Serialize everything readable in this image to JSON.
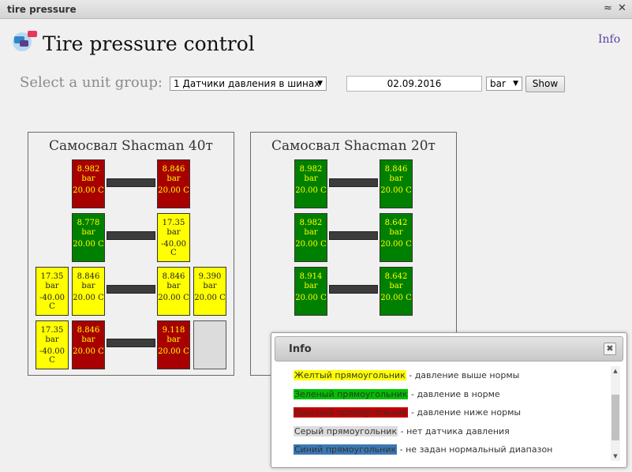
{
  "window": {
    "title": "tire pressure",
    "collapse_glyph": "≈",
    "close_glyph": "✕"
  },
  "header": {
    "title": "Tire pressure control",
    "info_link": "Info"
  },
  "controls": {
    "group_label": "Select a unit group:",
    "group_value": "1 Датчики давления в шинах",
    "date_value": "02.09.2016",
    "unit_value": "bar",
    "show_label": "Show"
  },
  "units": [
    {
      "title": "Самосвал Shacman 40т",
      "tires": [
        {
          "status": "red",
          "pressure": "8.982",
          "unit": "bar",
          "temp": "20.00 C"
        },
        {
          "status": "red",
          "pressure": "8.846",
          "unit": "bar",
          "temp": "20.00 C"
        },
        {
          "status": "green",
          "pressure": "8.778",
          "unit": "bar",
          "temp": "20.00 C"
        },
        {
          "status": "yellow",
          "pressure": "17.35",
          "unit": "bar",
          "temp": "-40.00 C"
        },
        {
          "status": "yellow",
          "pressure": "17.35",
          "unit": "bar",
          "temp": "-40.00 C"
        },
        {
          "status": "yellow",
          "pressure": "8.846",
          "unit": "bar",
          "temp": "20.00 C"
        },
        {
          "status": "yellow",
          "pressure": "8.846",
          "unit": "bar",
          "temp": "20.00 C"
        },
        {
          "status": "yellow",
          "pressure": "9.390",
          "unit": "bar",
          "temp": "20.00 C"
        },
        {
          "status": "yellow",
          "pressure": "17.35",
          "unit": "bar",
          "temp": "-40.00 C"
        },
        {
          "status": "red",
          "pressure": "8.846",
          "unit": "bar",
          "temp": "20.00 C"
        },
        {
          "status": "red",
          "pressure": "9.118",
          "unit": "bar",
          "temp": "20.00 C"
        },
        {
          "status": "gray",
          "pressure": "",
          "unit": "",
          "temp": ""
        }
      ]
    },
    {
      "title": "Самосвал Shacman 20т",
      "tires": [
        {
          "status": "green",
          "pressure": "8.982",
          "unit": "bar",
          "temp": "20.00 C"
        },
        {
          "status": "green",
          "pressure": "8.846",
          "unit": "bar",
          "temp": "20.00 C"
        },
        {
          "status": "green",
          "pressure": "8.982",
          "unit": "bar",
          "temp": "20.00 C"
        },
        {
          "status": "green",
          "pressure": "8.642",
          "unit": "bar",
          "temp": "20.00 C"
        },
        {
          "status": "green",
          "pressure": "8.914",
          "unit": "bar",
          "temp": "20.00 C"
        },
        {
          "status": "green",
          "pressure": "8.642",
          "unit": "bar",
          "temp": "20.00 C"
        }
      ]
    }
  ],
  "info": {
    "title": "Info",
    "close_glyph": "✖",
    "legend": [
      {
        "label": "Желтый прямоугольник",
        "desc": " - давление выше нормы",
        "color": "#ffff00"
      },
      {
        "label": "Зеленый прямоугольник",
        "desc": " - давление в норме",
        "color": "#00c000"
      },
      {
        "label": "Красный прямоугольник",
        "desc": " - давление ниже нормы",
        "color": "#c00000"
      },
      {
        "label": "Серый прямоугольник",
        "desc": " - нет датчика давления",
        "color": "#dcdcdc"
      },
      {
        "label": "Синий прямоугольник",
        "desc": " - не задан нормальный диапазон",
        "color": "#3c78b4"
      }
    ]
  }
}
